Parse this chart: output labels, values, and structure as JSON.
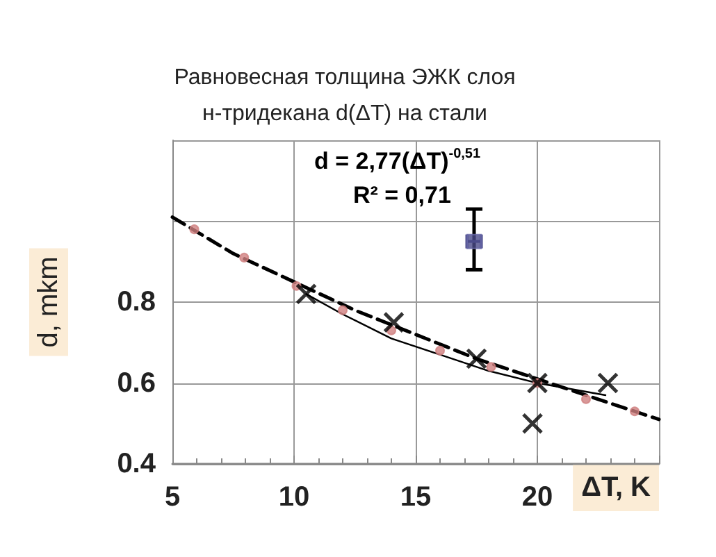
{
  "chart_data": {
    "type": "scatter",
    "title": "Равновесная толщина ЭЖК слоя\nн-тридекана d(ΔT) на стали",
    "xlabel": "ΔT, K",
    "ylabel": "d, mkm",
    "annotations": [
      "d = 2,77(ΔT)$^{-0,51}$",
      "R² = 0,71"
    ],
    "xlim": [
      5,
      25
    ],
    "xticks": [
      5,
      10,
      15,
      20,
      {
        "value": 25,
        "label": null
      }
    ],
    "ylim": [
      0.4,
      1.2
    ],
    "yticks": [
      0.4,
      0.6,
      0.8,
      {
        "value": 1,
        "label": null
      },
      {
        "value": 1.2,
        "label": null
      }
    ],
    "grid": true,
    "series": [
      {
        "type": "line",
        "color": "#000000",
        "line_style": "dashed",
        "marker": "none",
        "x": [
          5,
          7.5,
          10,
          12.5,
          15,
          17.5,
          20,
          22.5,
          25
        ],
        "values": [
          1.01,
          0.92,
          0.85,
          0.78,
          0.72,
          0.66,
          0.61,
          0.56,
          0.51
        ]
      },
      {
        "type": "line",
        "color": "#000000",
        "line_style": "solid",
        "marker": "none",
        "x": [
          10.5,
          12,
          14,
          16,
          18,
          20,
          22.8
        ],
        "values": [
          0.82,
          0.77,
          0.71,
          0.67,
          0.63,
          0.6,
          0.57
        ]
      },
      {
        "color": "#d08080",
        "marker": "circle",
        "x": [
          5.9,
          7.95,
          10.1,
          12,
          14,
          16,
          18.1,
          20,
          22,
          24
        ],
        "values": [
          0.98,
          0.91,
          0.84,
          0.78,
          0.73,
          0.68,
          0.64,
          0.6,
          0.56,
          0.53
        ]
      },
      {
        "color": "#000000",
        "marker": "cross",
        "x": [
          10.5,
          14.1,
          20
        ],
        "values": [
          0.82,
          0.75,
          0.6
        ]
      },
      {
        "color": "#000000",
        "marker": "cross",
        "x": [
          17.5,
          22.9,
          19.8
        ],
        "values": [
          0.66,
          0.6,
          0.5
        ]
      },
      {
        "color": "#4b4b8a",
        "marker": "square",
        "x": [
          17.4
        ],
        "values": [
          0.95
        ],
        "errors": [
          [
            0.88,
            1.03
          ]
        ],
        "xerrors": [
          0.3
        ]
      }
    ]
  }
}
